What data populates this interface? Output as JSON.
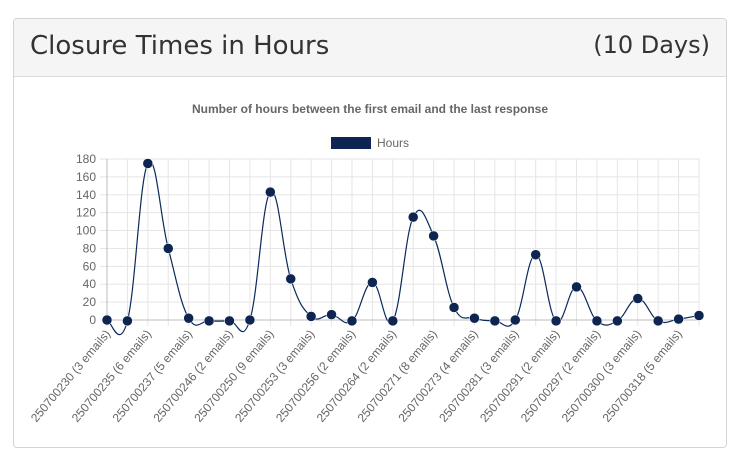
{
  "panel": {
    "title": "Closure Times in Hours",
    "days": "(10 Days)"
  },
  "chart_data": {
    "type": "line",
    "title": "Number of hours between the first email and the last response",
    "ylim": [
      0,
      180
    ],
    "yticks": [
      0,
      20,
      40,
      60,
      80,
      100,
      120,
      140,
      160,
      180
    ],
    "grid": true,
    "legend_position": "top",
    "line_color": "#0b2a5c",
    "point_color": "#0d2550",
    "series": [
      {
        "name": "Hours",
        "values": [
          0,
          -1,
          175,
          80,
          2,
          -1,
          -1,
          0,
          143,
          46,
          4,
          6,
          -1,
          42,
          -1,
          115,
          94,
          14,
          2,
          -1,
          0,
          73,
          -1,
          37,
          -1,
          -1,
          24,
          -1,
          1,
          5
        ]
      }
    ],
    "categories": [
      "250700230 (3 emails)",
      "",
      "250700235 (6 emails)",
      "",
      "250700237 (5 emails)",
      "",
      "250700246 (2 emails)",
      "",
      "250700250 (9 emails)",
      "",
      "250700253 (3 emails)",
      "",
      "250700256 (2 emails)",
      "",
      "250700264 (2 emails)",
      "",
      "250700271 (8 emails)",
      "",
      "250700273 (4 emails)",
      "",
      "250700281 (3 emails)",
      "",
      "250700291 (2 emails)",
      "",
      "250700297 (2 emails)",
      "",
      "250700300 (3 emails)",
      "",
      "250700318 (5 emails)",
      ""
    ]
  }
}
